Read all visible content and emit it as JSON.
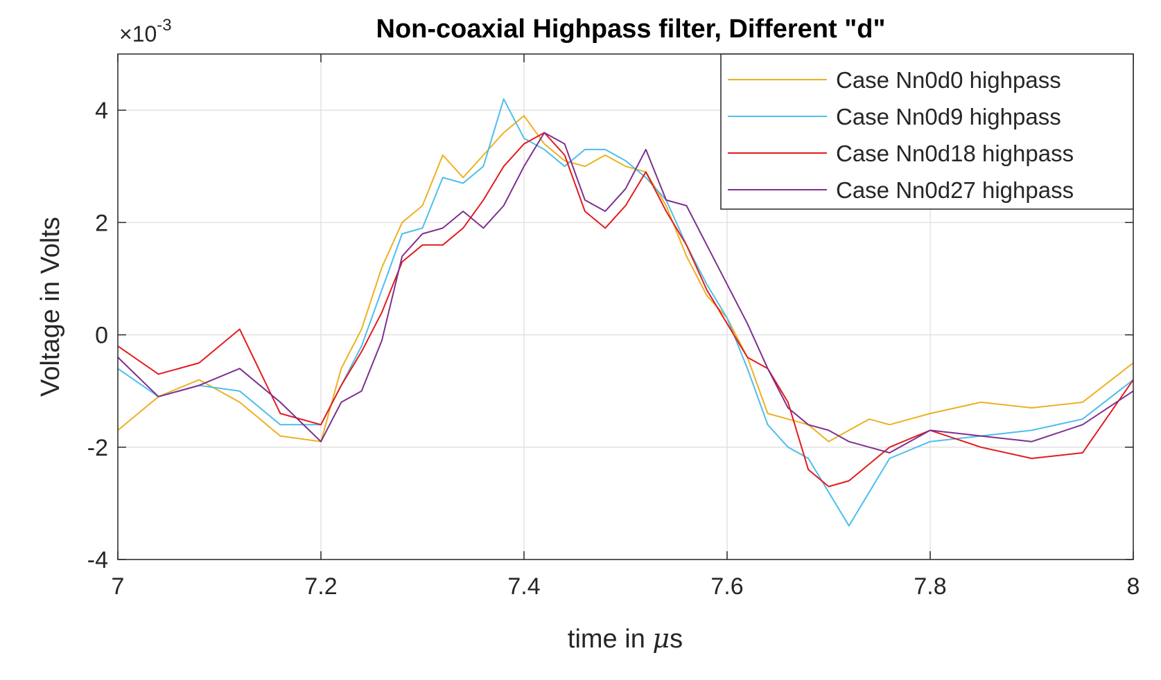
{
  "chart_data": {
    "type": "line",
    "title": "Non-coaxial Highpass filter, Different \"d\"",
    "xlabel_prefix": "time in ",
    "xlabel_unit": "μ",
    "xlabel_suffix": "s",
    "ylabel": "Voltage in Volts",
    "y_exponent_base": "×10",
    "y_exponent_power": "-3",
    "xlim": [
      7,
      8
    ],
    "ylim": [
      -4,
      5
    ],
    "xticks": [
      7,
      7.2,
      7.4,
      7.6,
      7.8,
      8
    ],
    "xtick_labels": [
      "7",
      "7.2",
      "7.4",
      "7.6",
      "7.8",
      "8"
    ],
    "yticks": [
      -4,
      -2,
      0,
      2,
      4
    ],
    "ytick_labels": [
      "-4",
      "-2",
      "0",
      "2",
      "4"
    ],
    "grid": true,
    "legend_position": "top-right",
    "x": [
      7.0,
      7.04,
      7.08,
      7.12,
      7.16,
      7.2,
      7.22,
      7.24,
      7.26,
      7.28,
      7.3,
      7.32,
      7.34,
      7.36,
      7.38,
      7.4,
      7.42,
      7.44,
      7.46,
      7.48,
      7.5,
      7.52,
      7.54,
      7.56,
      7.58,
      7.6,
      7.62,
      7.64,
      7.66,
      7.68,
      7.7,
      7.72,
      7.74,
      7.76,
      7.8,
      7.85,
      7.9,
      7.95,
      8.0
    ],
    "series": [
      {
        "name": "Case Nn0d0 highpass",
        "color": "#EDB120",
        "values": [
          -1.7,
          -1.1,
          -0.8,
          -1.2,
          -1.8,
          -1.9,
          -0.6,
          0.1,
          1.2,
          2.0,
          2.3,
          3.2,
          2.8,
          3.2,
          3.6,
          3.9,
          3.4,
          3.1,
          3.0,
          3.2,
          3.0,
          2.9,
          2.3,
          1.4,
          0.7,
          0.3,
          -0.4,
          -1.4,
          -1.5,
          -1.6,
          -1.9,
          -1.7,
          -1.5,
          -1.6,
          -1.4,
          -1.2,
          -1.3,
          -1.2,
          -0.5
        ]
      },
      {
        "name": "Case Nn0d9 highpass",
        "color": "#4DBEEE",
        "values": [
          -0.6,
          -1.1,
          -0.9,
          -1.0,
          -1.6,
          -1.6,
          -0.9,
          -0.2,
          0.8,
          1.8,
          1.9,
          2.8,
          2.7,
          3.0,
          4.2,
          3.5,
          3.3,
          3.0,
          3.3,
          3.3,
          3.1,
          2.8,
          2.4,
          1.6,
          0.9,
          0.3,
          -0.6,
          -1.6,
          -2.0,
          -2.2,
          -2.8,
          -3.4,
          -2.8,
          -2.2,
          -1.9,
          -1.8,
          -1.7,
          -1.5,
          -0.8
        ]
      },
      {
        "name": "Case Nn0d18 highpass",
        "color": "#E41A1C",
        "values": [
          -0.2,
          -0.7,
          -0.5,
          0.1,
          -1.4,
          -1.6,
          -0.9,
          -0.3,
          0.4,
          1.3,
          1.6,
          1.6,
          1.9,
          2.4,
          3.0,
          3.4,
          3.6,
          3.2,
          2.2,
          1.9,
          2.3,
          2.9,
          2.2,
          1.6,
          0.8,
          0.2,
          -0.4,
          -0.6,
          -1.2,
          -2.4,
          -2.7,
          -2.6,
          -2.3,
          -2.0,
          -1.7,
          -2.0,
          -2.2,
          -2.1,
          -0.8
        ]
      },
      {
        "name": "Case Nn0d27 highpass",
        "color": "#7E2F8E",
        "values": [
          -0.4,
          -1.1,
          -0.9,
          -0.6,
          -1.2,
          -1.9,
          -1.2,
          -1.0,
          -0.1,
          1.4,
          1.8,
          1.9,
          2.2,
          1.9,
          2.3,
          3.0,
          3.6,
          3.4,
          2.4,
          2.2,
          2.6,
          3.3,
          2.4,
          2.3,
          1.6,
          0.9,
          0.2,
          -0.6,
          -1.3,
          -1.6,
          -1.7,
          -1.9,
          -2.0,
          -2.1,
          -1.7,
          -1.8,
          -1.9,
          -1.6,
          -1.0
        ]
      }
    ]
  }
}
